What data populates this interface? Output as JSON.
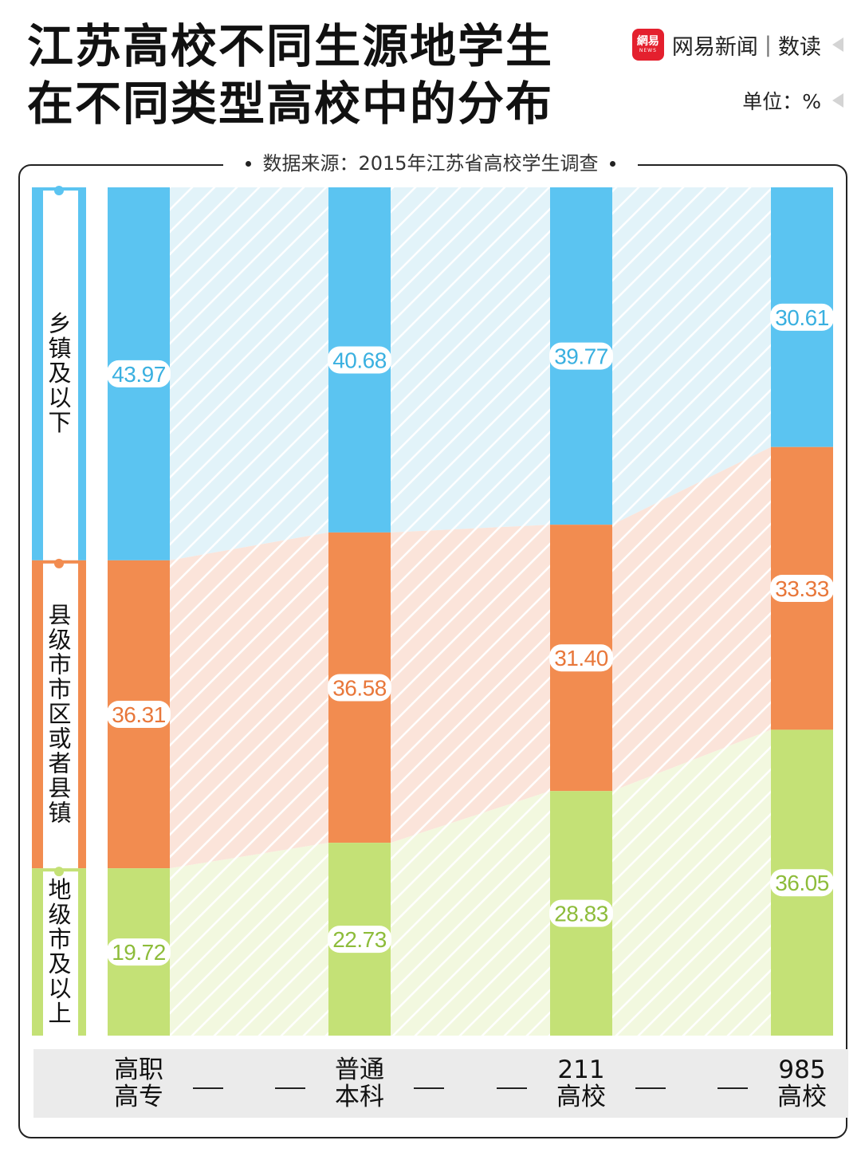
{
  "title": {
    "line1": "江苏高校不同生源地学生",
    "line2": "在不同类型高校中的分布"
  },
  "brand": {
    "logo_text": "網易",
    "logo_sub": "NEWS",
    "name": "网易新闻",
    "separator": "|",
    "sub": "数读"
  },
  "unit": "单位：%",
  "source": "数据来源：2015年江苏省高校学生调查",
  "chart_data": {
    "type": "bar",
    "stacked": true,
    "categories": [
      "高职高专",
      "普通本科",
      "211高校",
      "985高校"
    ],
    "category_lines": [
      [
        "高职",
        "高专"
      ],
      [
        "普通",
        "本科"
      ],
      [
        "211",
        "高校"
      ],
      [
        "985",
        "高校"
      ]
    ],
    "series": [
      {
        "name": "乡镇及以下",
        "color": "#5bc4f1",
        "values": [
          43.97,
          40.68,
          39.77,
          30.61
        ]
      },
      {
        "name": "县级市市区或者县镇",
        "color": "#f28c50",
        "values": [
          36.31,
          36.58,
          31.4,
          33.33
        ]
      },
      {
        "name": "地级市及以上",
        "color": "#c4e176",
        "values": [
          19.72,
          22.73,
          28.83,
          36.05
        ]
      }
    ],
    "band_colors": [
      "#e2f3f9",
      "#fbe4da",
      "#f2f8df"
    ],
    "label_colors": [
      "#3ab0e0",
      "#e8773a",
      "#8dbc3a"
    ],
    "ylim": [
      0,
      100
    ],
    "legend_position": "left"
  }
}
